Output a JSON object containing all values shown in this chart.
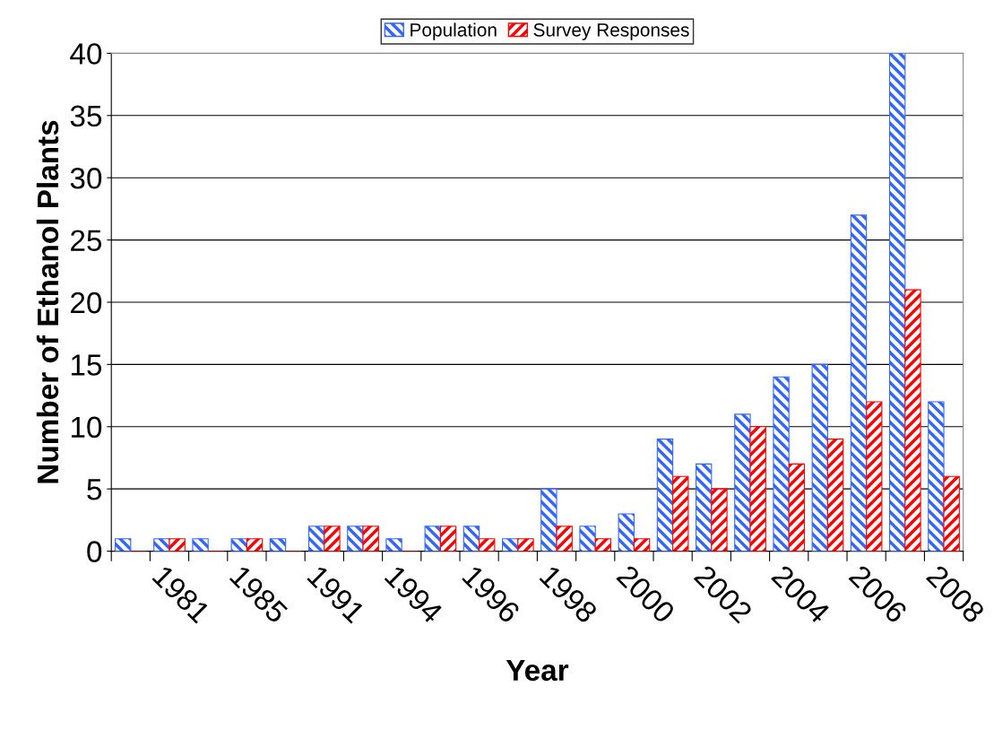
{
  "chart_data": {
    "type": "bar",
    "xlabel": "Year",
    "ylabel": "Number of Ethanol Plants",
    "categories": [
      null,
      "1981",
      null,
      "1985",
      null,
      "1991",
      null,
      "1994",
      null,
      "1996",
      null,
      "1998",
      null,
      "2000",
      null,
      "2002",
      null,
      "2004",
      null,
      "2006",
      null,
      "2008"
    ],
    "series": [
      {
        "name": "Population",
        "color": "#3366ff",
        "values": [
          1,
          1,
          1,
          1,
          1,
          2,
          2,
          1,
          2,
          2,
          1,
          5,
          2,
          3,
          9,
          7,
          11,
          14,
          15,
          27,
          40,
          12
        ]
      },
      {
        "name": "Survey Responses",
        "color": "#ff0000",
        "values": [
          0,
          1,
          0,
          1,
          0,
          2,
          2,
          0,
          2,
          1,
          1,
          2,
          1,
          1,
          6,
          5,
          10,
          7,
          9,
          12,
          21,
          6
        ]
      }
    ],
    "ylim": [
      0,
      40
    ],
    "yticks": [
      0,
      5,
      10,
      15,
      20,
      25,
      30,
      35,
      40
    ],
    "grid": "y",
    "legend": "top"
  }
}
